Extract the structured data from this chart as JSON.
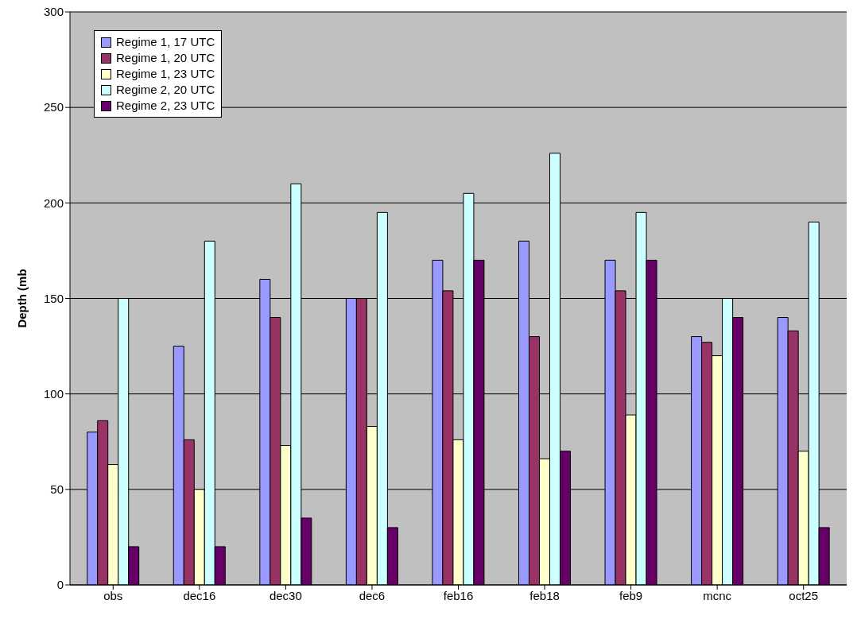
{
  "chart_data": {
    "type": "bar",
    "ylabel": "Depth (mb",
    "categories": [
      "obs",
      "dec16",
      "dec30",
      "dec6",
      "feb16",
      "feb18",
      "feb9",
      "mcnc",
      "oct25"
    ],
    "series": [
      {
        "name": "Regime 1, 17 UTC",
        "color": "#9999ff",
        "values": [
          80,
          125,
          160,
          150,
          170,
          180,
          170,
          130,
          140
        ]
      },
      {
        "name": "Regime 1, 20 UTC",
        "color": "#993366",
        "values": [
          86,
          76,
          140,
          150,
          154,
          130,
          154,
          127,
          133
        ]
      },
      {
        "name": "Regime 1, 23 UTC",
        "color": "#ffffcc",
        "values": [
          63,
          50,
          73,
          83,
          76,
          66,
          89,
          120,
          70
        ]
      },
      {
        "name": "Regime 2, 20 UTC",
        "color": "#ccffff",
        "values": [
          150,
          180,
          210,
          195,
          205,
          226,
          195,
          150,
          190
        ]
      },
      {
        "name": "Regime 2, 23 UTC",
        "color": "#660066",
        "values": [
          20,
          20,
          35,
          30,
          170,
          70,
          170,
          140,
          30
        ]
      }
    ],
    "ylim": [
      0,
      300
    ],
    "yticks": [
      0,
      50,
      100,
      150,
      200,
      250,
      300
    ],
    "grid": "y",
    "legend": "top left"
  }
}
